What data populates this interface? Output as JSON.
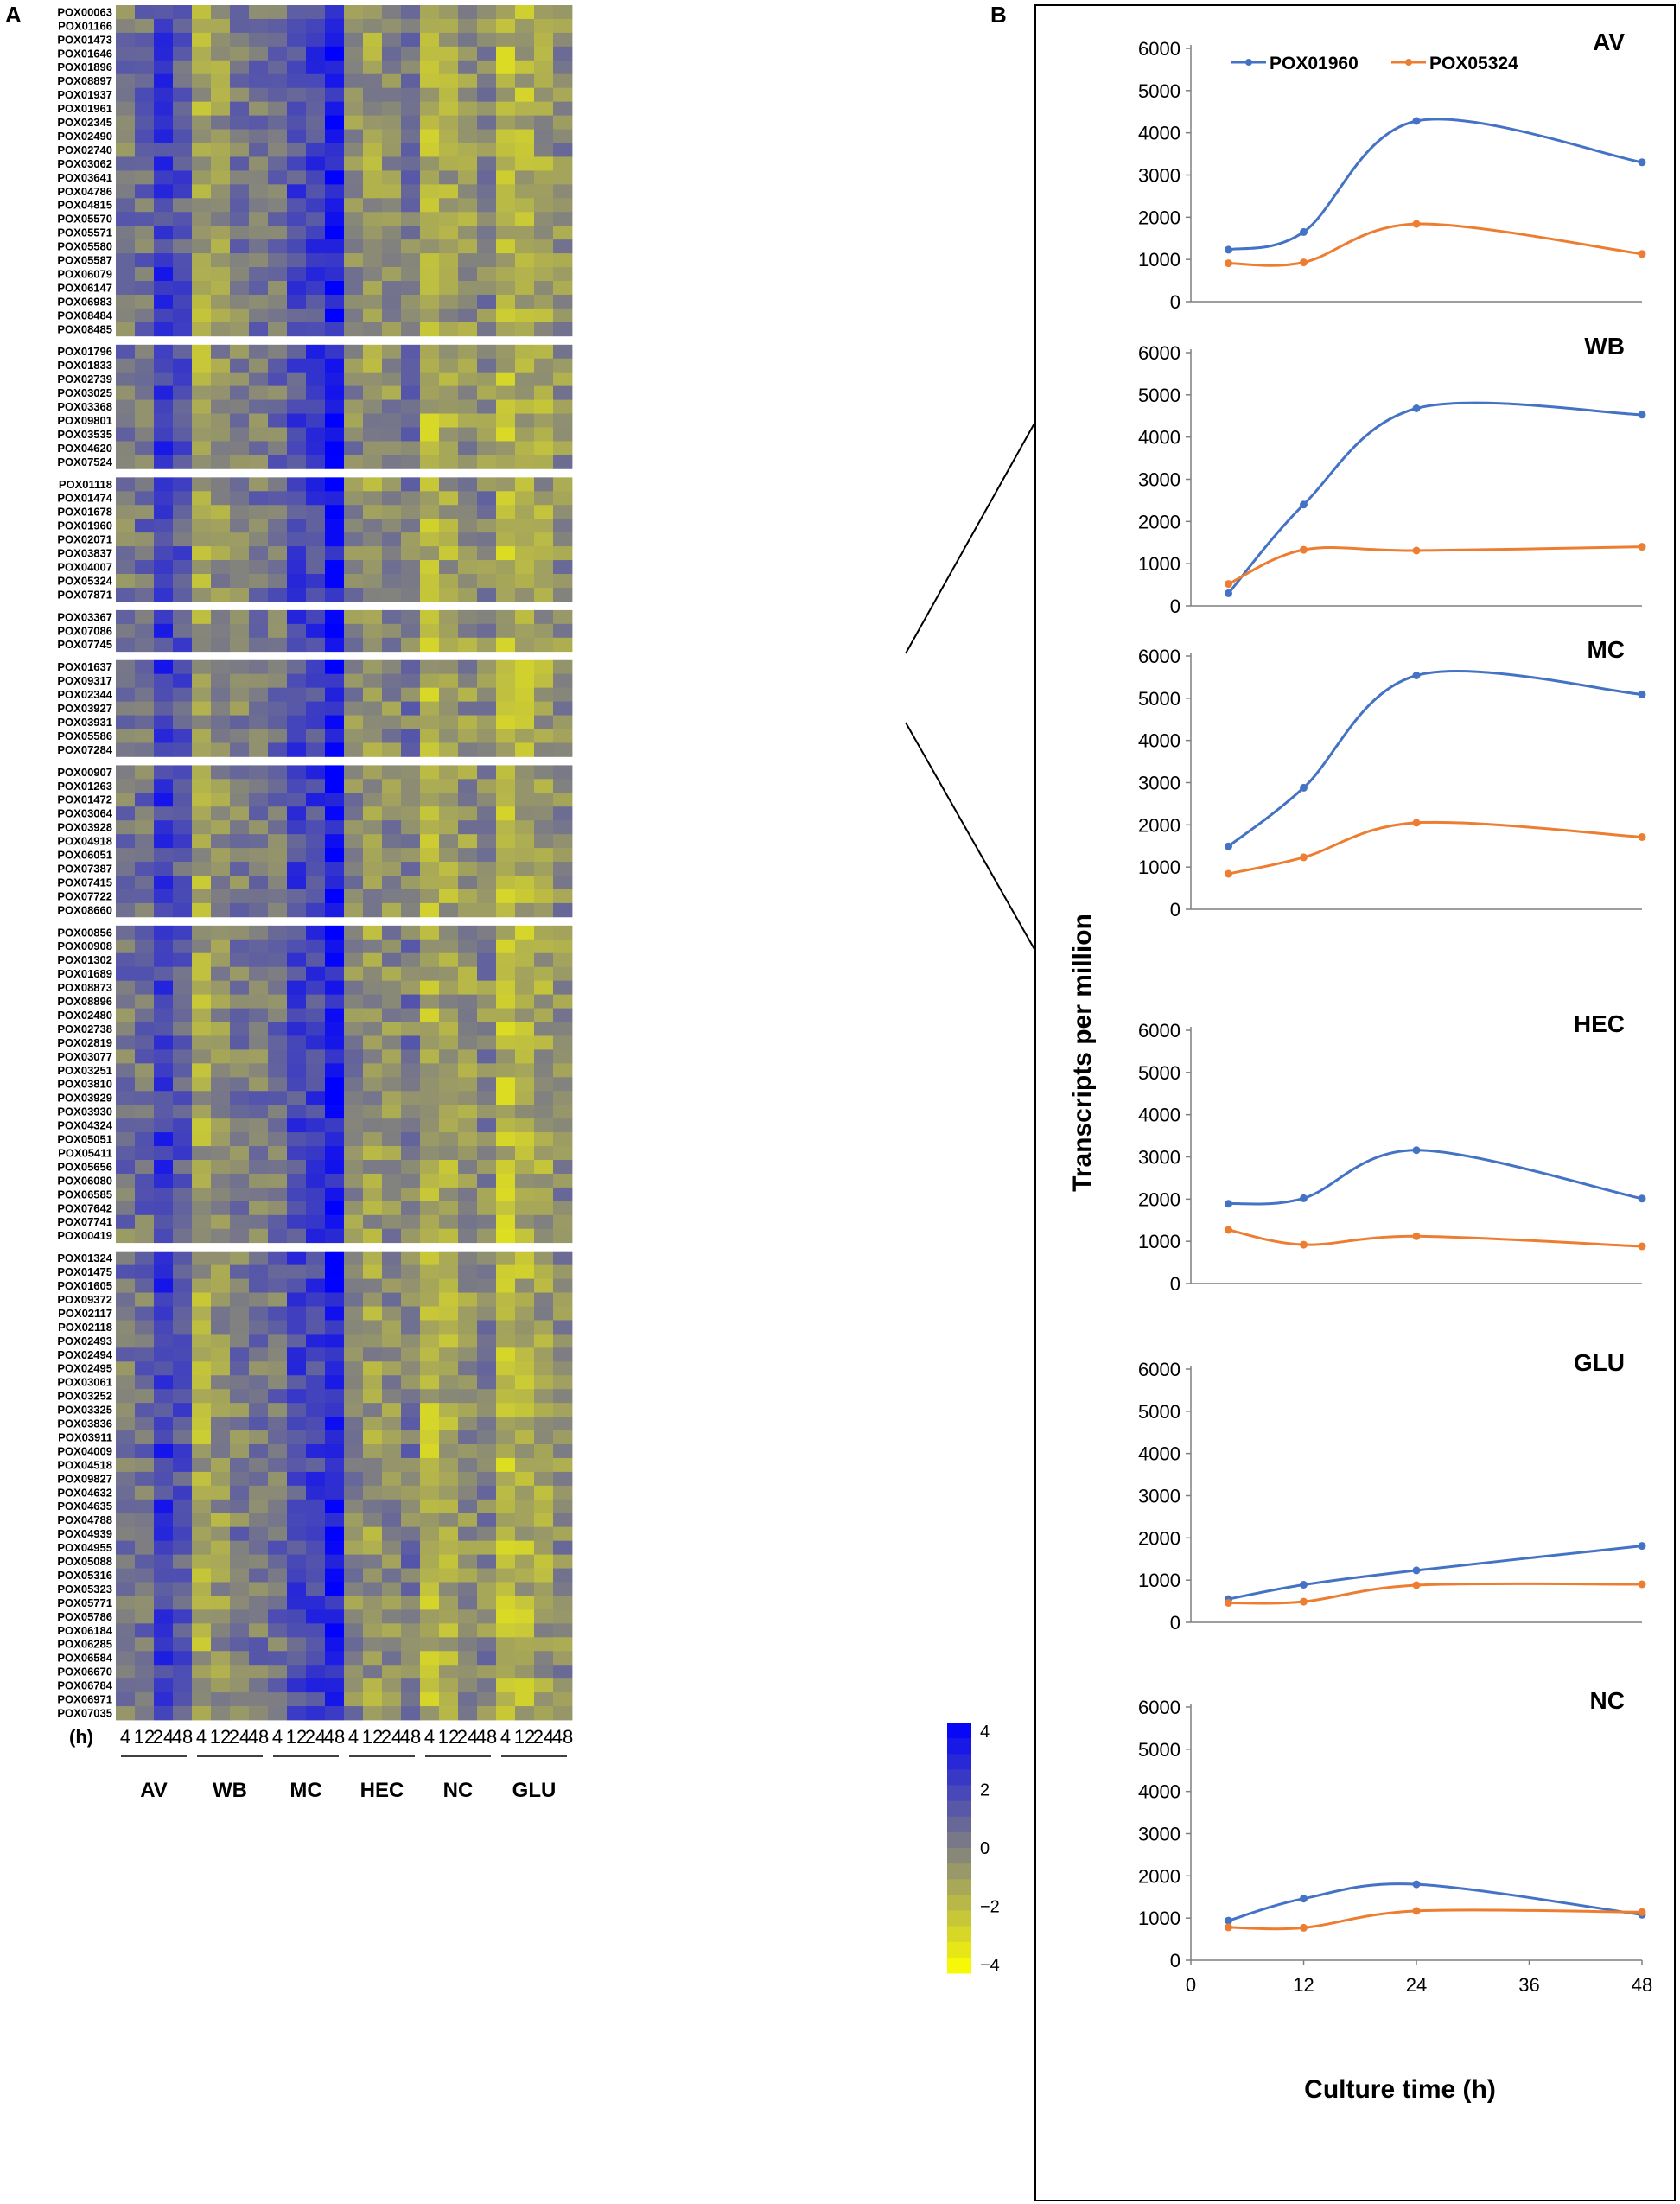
{
  "panel_labels": {
    "a": "A",
    "b": "B"
  },
  "heatmap": {
    "time_label": "(h)",
    "timepoints": [
      "4",
      "12",
      "24",
      "48"
    ],
    "conditions": [
      "AV",
      "WB",
      "MC",
      "HEC",
      "NC",
      "GLU"
    ],
    "scale": {
      "min": -4,
      "max": 4,
      "ticks": [
        "4",
        "2",
        "0",
        "−2",
        "−4"
      ],
      "low_color": "#ffff00",
      "mid_color": "#808080",
      "high_color": "#0000ff"
    },
    "groups": [
      [
        "POX00063",
        "POX01166",
        "POX01473",
        "POX01646",
        "POX01896",
        "POX08897",
        "POX01937",
        "POX01961",
        "POX02345",
        "POX02490",
        "POX02740",
        "POX03062",
        "POX03641",
        "POX04786",
        "POX04815",
        "POX05570",
        "POX05571",
        "POX05580",
        "POX05587",
        "POX06079",
        "POX06147",
        "POX06983",
        "POX08484",
        "POX08485"
      ],
      [
        "POX01796",
        "POX01833",
        "POX02739",
        "POX03025",
        "POX03368",
        "POX09801",
        "POX03535",
        "POX04620",
        "POX07524"
      ],
      [
        "POX01118",
        "POX01474",
        "POX01678",
        "POX01960",
        "POX02071",
        "POX03837",
        "POX04007",
        "POX05324",
        "POX07871"
      ],
      [
        "POX03367",
        "POX07086",
        "POX07745"
      ],
      [
        "POX01637",
        "POX09317",
        "POX02344",
        "POX03927",
        "POX03931",
        "POX05586",
        "POX07284"
      ],
      [
        "POX00907",
        "POX01263",
        "POX01472",
        "POX03064",
        "POX03928",
        "POX04918",
        "POX06051",
        "POX07387",
        "POX07415",
        "POX07722",
        "POX08660"
      ],
      [
        "POX00856",
        "POX00908",
        "POX01302",
        "POX01689",
        "POX08873",
        "POX08896",
        "POX02480",
        "POX02738",
        "POX02819",
        "POX03077",
        "POX03251",
        "POX03810",
        "POX03929",
        "POX03930",
        "POX04324",
        "POX05051",
        "POX05411",
        "POX05656",
        "POX06080",
        "POX06585",
        "POX07642",
        "POX07741",
        "POX00419"
      ],
      [
        "POX01324",
        "POX01475",
        "POX01605",
        "POX09372",
        "POX02117",
        "POX02118",
        "POX02493",
        "POX02494",
        "POX02495",
        "POX03061",
        "POX03252",
        "POX03325",
        "POX03836",
        "POX03911",
        "POX04009",
        "POX04518",
        "POX09827",
        "POX04632",
        "POX04635",
        "POX04788",
        "POX04939",
        "POX04955",
        "POX05088",
        "POX05316",
        "POX05323",
        "POX05771",
        "POX05786",
        "POX06184",
        "POX06285",
        "POX06584",
        "POX06670",
        "POX06784",
        "POX06971",
        "POX07035"
      ]
    ],
    "condition_profile_z": {
      "AV": [
        0.3,
        0.5,
        2.2,
        1.2
      ],
      "WB": [
        -1.2,
        -0.6,
        0.1,
        0.2
      ],
      "MC": [
        0.5,
        1.7,
        1.9,
        3.2
      ],
      "HEC": [
        -0.3,
        -0.8,
        -0.4,
        0.2
      ],
      "NC": [
        -1.6,
        -1.1,
        -0.6,
        -0.2
      ],
      "GLU": [
        -1.8,
        -1.5,
        -1.0,
        -0.4
      ]
    }
  },
  "line_charts": {
    "y_axis_label": "Transcripts per million",
    "x_axis_label": "Culture time (h)",
    "x_ticks": [
      "0",
      "12",
      "24",
      "36",
      "48"
    ],
    "y_ticks": [
      "0",
      "1000",
      "2000",
      "3000",
      "4000",
      "5000",
      "6000"
    ],
    "legend": [
      "POX01960",
      "POX05324"
    ],
    "colors": {
      "POX01960": "#4472c4",
      "POX05324": "#ed7d31"
    }
  },
  "chart_data": [
    {
      "type": "heatmap",
      "title": "",
      "x_categories": [
        "AV 4",
        "AV 12",
        "AV 24",
        "AV 48",
        "WB 4",
        "WB 12",
        "WB 24",
        "WB 48",
        "MC 4",
        "MC 12",
        "MC 24",
        "MC 48",
        "HEC 4",
        "HEC 12",
        "HEC 24",
        "HEC 48",
        "NC 4",
        "NC 12",
        "NC 24",
        "NC 48",
        "GLU 4",
        "GLU 12",
        "GLU 24",
        "GLU 48"
      ],
      "xlabel": "(h)",
      "value_range": [
        -4,
        4
      ],
      "note": "Row labels listed in heatmap.groups; cell z-scores approximated from the per-condition profile"
    },
    {
      "type": "line",
      "title": "AV",
      "x": [
        4,
        12,
        24,
        48
      ],
      "xlim": [
        0,
        48
      ],
      "ylim": [
        0,
        6000
      ],
      "xlabel": "Culture time (h)",
      "ylabel": "Transcripts per million",
      "series": [
        {
          "name": "POX01960",
          "values": [
            1230,
            1650,
            4280,
            3300
          ]
        },
        {
          "name": "POX05324",
          "values": [
            910,
            930,
            1840,
            1130
          ]
        }
      ]
    },
    {
      "type": "line",
      "title": "WB",
      "x": [
        4,
        12,
        24,
        48
      ],
      "xlim": [
        0,
        48
      ],
      "ylim": [
        0,
        6000
      ],
      "xlabel": "Culture time (h)",
      "ylabel": "Transcripts per million",
      "series": [
        {
          "name": "POX01960",
          "values": [
            300,
            2400,
            4680,
            4530
          ]
        },
        {
          "name": "POX05324",
          "values": [
            520,
            1330,
            1310,
            1400
          ]
        }
      ]
    },
    {
      "type": "line",
      "title": "MC",
      "x": [
        4,
        12,
        24,
        48
      ],
      "xlim": [
        0,
        48
      ],
      "ylim": [
        0,
        6000
      ],
      "xlabel": "Culture time (h)",
      "ylabel": "Transcripts per million",
      "series": [
        {
          "name": "POX01960",
          "values": [
            1490,
            2880,
            5540,
            5090
          ]
        },
        {
          "name": "POX05324",
          "values": [
            840,
            1230,
            2050,
            1710
          ]
        }
      ]
    },
    {
      "type": "line",
      "title": "HEC",
      "x": [
        4,
        12,
        24,
        48
      ],
      "xlim": [
        0,
        48
      ],
      "ylim": [
        0,
        6000
      ],
      "xlabel": "Culture time (h)",
      "ylabel": "Transcripts per million",
      "series": [
        {
          "name": "POX01960",
          "values": [
            1890,
            2020,
            3160,
            2010
          ]
        },
        {
          "name": "POX05324",
          "values": [
            1270,
            920,
            1120,
            880
          ]
        }
      ]
    },
    {
      "type": "line",
      "title": "GLU",
      "x": [
        4,
        12,
        24,
        48
      ],
      "xlim": [
        0,
        48
      ],
      "ylim": [
        0,
        6000
      ],
      "xlabel": "Culture time (h)",
      "ylabel": "Transcripts per million",
      "series": [
        {
          "name": "POX01960",
          "values": [
            550,
            890,
            1230,
            1810
          ]
        },
        {
          "name": "POX05324",
          "values": [
            460,
            490,
            880,
            900
          ]
        }
      ]
    },
    {
      "type": "line",
      "title": "NC",
      "x": [
        4,
        12,
        24,
        48
      ],
      "xlim": [
        0,
        48
      ],
      "ylim": [
        0,
        6000
      ],
      "xlabel": "Culture time (h)",
      "ylabel": "Transcripts per million",
      "series": [
        {
          "name": "POX01960",
          "values": [
            940,
            1460,
            1800,
            1080
          ]
        },
        {
          "name": "POX05324",
          "values": [
            780,
            770,
            1170,
            1140
          ]
        }
      ]
    }
  ]
}
